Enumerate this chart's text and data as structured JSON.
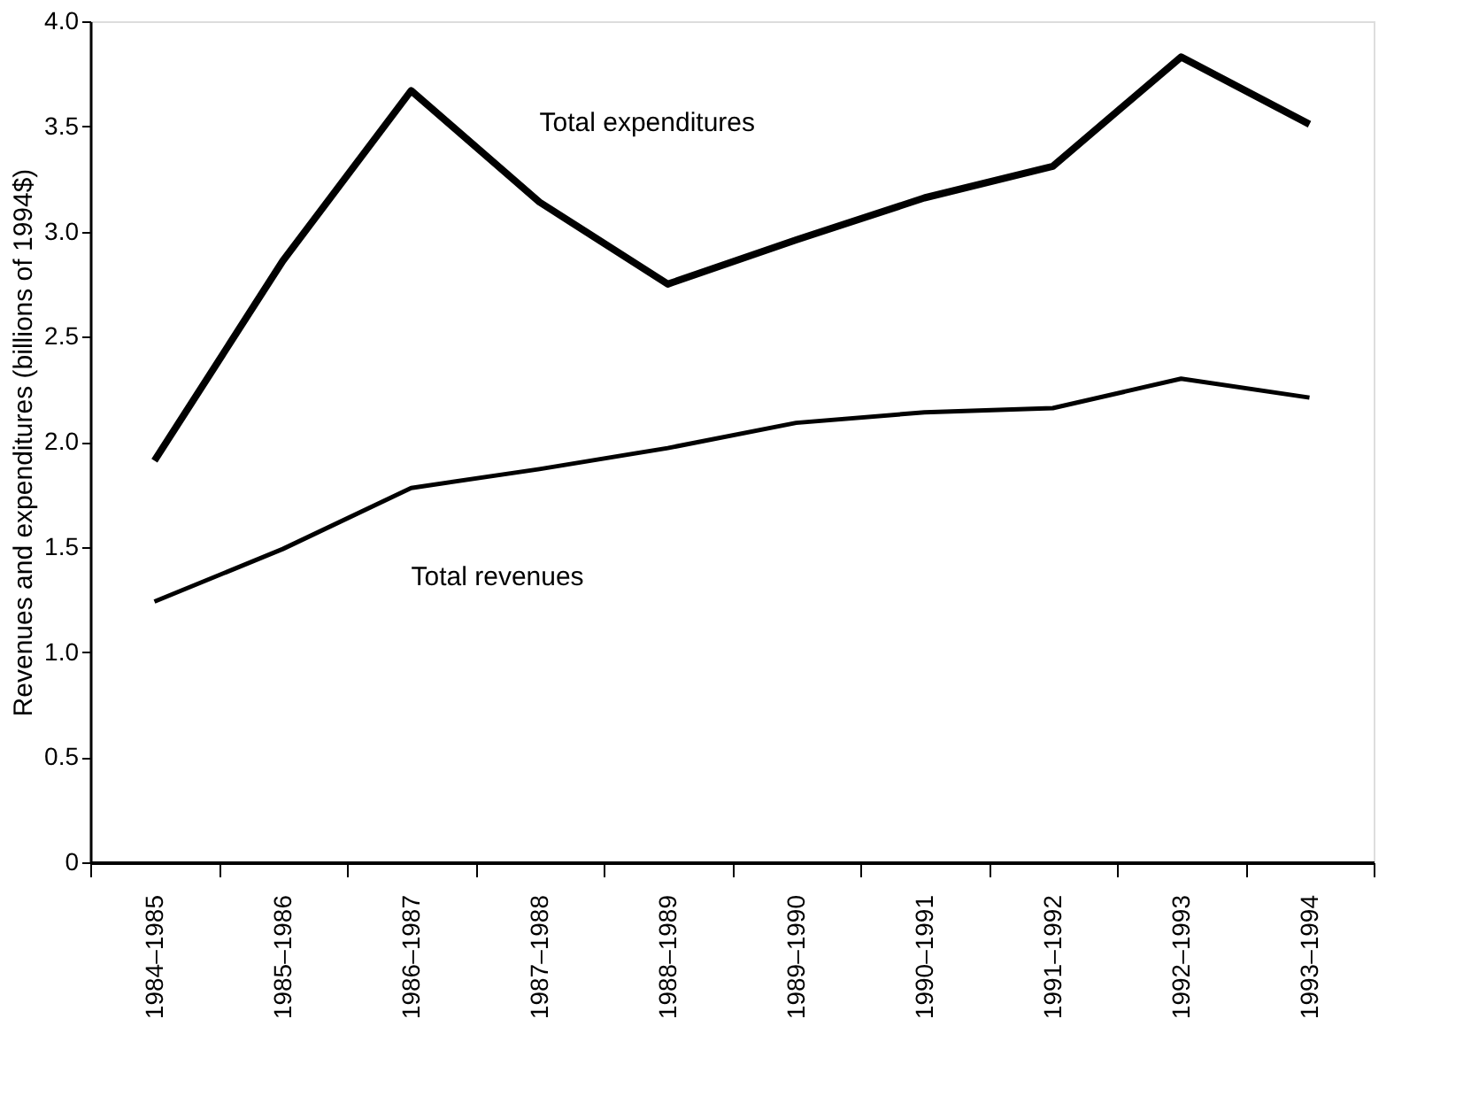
{
  "chart_data": {
    "type": "line",
    "ylabel": "Revenues and expenditures (billions of 1994$)",
    "categories": [
      "1984–1985",
      "1985–1986",
      "1986–1987",
      "1987–1988",
      "1988–1989",
      "1989–1990",
      "1990–1991",
      "1991–1992",
      "1992–1993",
      "1993–1994"
    ],
    "series": [
      {
        "name": "Total expenditures",
        "color": "#000000",
        "values": [
          1.91,
          2.86,
          3.67,
          3.14,
          2.75,
          2.96,
          3.16,
          3.31,
          3.83,
          3.51
        ]
      },
      {
        "name": "Total revenues",
        "color": "#000000",
        "values": [
          1.24,
          1.49,
          1.78,
          1.87,
          1.97,
          2.09,
          2.14,
          2.16,
          2.3,
          2.21
        ]
      }
    ],
    "ylim": [
      0,
      4.0
    ],
    "yticks": [
      0,
      {
        "value": 0.5,
        "label": "0.5"
      },
      {
        "value": 1,
        "label": "1.0"
      },
      {
        "value": 1.5,
        "label": "1.5"
      },
      {
        "value": 2,
        "label": "2.0"
      },
      {
        "value": 2.5,
        "label": "2.5"
      },
      {
        "value": 3,
        "label": "3.0"
      },
      {
        "value": 3.5,
        "label": "3.5"
      },
      {
        "value": 4,
        "label": "4.0"
      }
    ],
    "grid": false,
    "legend": false,
    "marker": "none",
    "line_style": "solid"
  }
}
